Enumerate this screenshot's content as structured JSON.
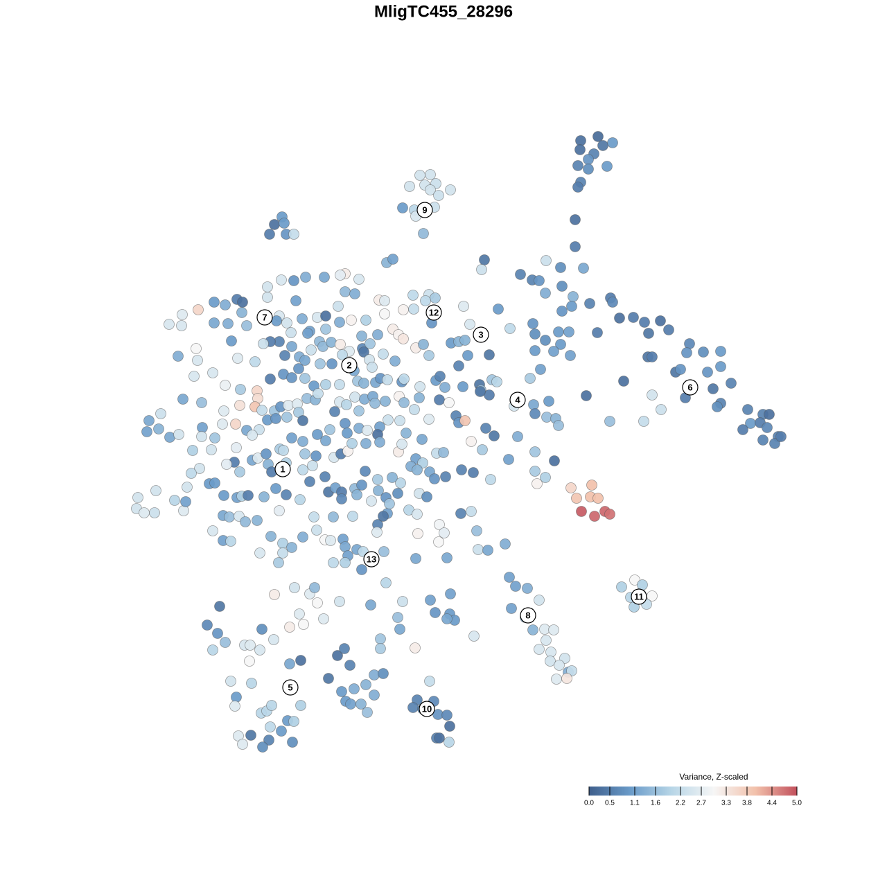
{
  "chart_data": {
    "type": "scatter",
    "title": "MligTC455_28296",
    "xlim": [
      0,
      1280
    ],
    "ylim": [
      1280,
      0
    ],
    "x": [
      863,
      838,
      870,
      884,
      837,
      857,
      849,
      834,
      849,
      876,
      838,
      834,
      606,
      621,
      591,
      613,
      629,
      650,
      621,
      633,
      581,
      627,
      598,
      600,
      611,
      407,
      396,
      410,
      389,
      413,
      424,
      830,
      830,
      699,
      695,
      751,
      788,
      809,
      842,
      768,
      778,
      811,
      787,
      827,
      851,
      881,
      884,
      811,
      825,
      769,
      772,
      806,
      821,
      787,
      809,
      772,
      799,
      823,
      862,
      894,
      914,
      930,
      936,
      953,
      965,
      935,
      941,
      995,
      991,
      1015,
      1040,
      1040,
      975,
      982,
      1021,
      1029,
      1055,
      989,
      1040,
      1035,
      1079,
      1083,
      1072,
      1101,
      1110,
      1097,
      1107,
      1123,
      1101,
      1118,
      1127,
      900,
      846,
      941,
      954,
      929,
      880,
      824,
      854,
      832,
      852,
      863,
      839,
      873,
      880,
      858,
      916,
      897,
      927,
      910,
      941,
      933,
      915,
      925,
      735,
      744,
      761,
      778,
      738,
      758,
      769,
      786,
      799,
      788,
      778,
      795,
      815,
      794,
      807,
      820,
      825,
      818,
      803,
      620,
      602,
      626,
      596,
      610,
      632,
      645,
      649,
      630,
      634,
      648,
      487,
      497,
      474,
      505,
      540,
      553,
      493,
      511,
      528,
      540,
      499,
      506,
      521,
      530,
      317,
      299,
      314,
      325,
      307,
      353,
      361,
      375,
      378,
      395,
      360,
      333,
      363,
      341,
      339,
      377,
      385,
      392,
      434,
      415,
      424,
      406,
      390,
      344,
      362,
      350,
      388,
      379,
      422,
      418,
      434,
      418,
      432,
      438,
      447,
      458,
      467,
      490,
      396,
      425,
      454,
      535,
      557,
      581,
      574,
      577,
      549,
      549,
      599,
      621,
      628,
      650,
      649,
      656,
      645,
      684,
      498,
      491,
      518,
      468,
      441,
      424,
      406,
      386,
      386,
      427,
      498,
      512,
      558,
      567,
      547,
      555,
      596,
      619,
      628,
      614,
      582,
      597,
      555,
      488,
      669,
      719,
      623,
      623,
      678,
      736,
      286,
      309,
      325,
      342,
      350,
      263,
      349,
      244,
      262,
      309,
      329,
      356,
      403,
      414,
      399,
      436,
      458,
      470,
      490,
      507,
      528,
      470,
      447,
      420,
      403,
      390,
      380,
      334,
      283,
      257,
      285,
      343,
      368,
      421,
      444,
      449,
      461,
      466,
      478,
      491,
      504,
      523,
      525,
      545,
      522,
      534,
      567,
      575,
      582,
      600,
      611,
      619,
      651,
      662,
      671,
      706,
      675,
      662,
      411,
      432,
      440,
      462,
      479,
      494,
      533,
      553,
      570,
      537,
      280,
      307,
      325,
      347,
      371,
      372,
      368,
      346,
      390,
      409,
      421,
      431,
      440,
      453,
      470,
      490,
      511,
      516,
      525,
      542,
      549,
      559,
      580,
      583,
      606,
      629,
      635,
      642,
      668,
      692,
      694,
      710,
      717,
      706,
      693,
      765,
      780,
      264,
      291,
      323,
      340,
      321,
      292,
      291,
      310,
      215,
      232,
      229,
      212,
      245,
      258,
      278,
      305,
      341,
      356,
      374,
      386,
      378,
      396,
      405,
      416,
      429,
      431,
      414,
      398,
      437,
      443,
      455,
      459,
      483,
      490,
      500,
      512,
      526,
      518,
      538,
      541,
      556,
      576,
      583,
      598,
      605,
      634,
      648,
      658,
      662,
      671,
      742,
      770,
      792,
      772,
      789,
      802,
      806,
      747,
      701,
      713,
      364,
      421,
      437,
      458,
      470,
      476,
      498,
      501,
      518,
      530,
      548,
      545,
      560,
      577,
      586,
      609,
      619,
      680,
      696,
      734,
      772,
      800,
      338,
      327,
      346,
      364,
      372,
      384,
      387,
      404,
      409,
      413,
      440,
      456,
      451,
      482,
      492,
      502,
      508,
      528,
      548,
      575,
      580,
      600,
      610,
      630,
      640,
      593,
      602,
      643,
      620,
      627,
      666,
      683,
      708,
      772,
      787,
      775,
      288,
      276,
      302,
      310,
      270,
      252,
      225,
      199,
      197,
      208,
      223,
      265,
      268,
      323,
      342,
      349,
      358,
      381,
      392,
      398,
      413,
      433,
      437,
      447,
      469,
      474,
      484,
      493,
      493,
      512,
      522,
      515,
      527,
      545,
      546,
      557,
      574,
      578,
      566,
      536,
      559,
      562,
      590,
      602,
      605,
      616,
      634,
      665,
      680,
      322,
      331,
      345,
      354,
      371,
      403,
      453,
      481,
      509,
      545,
      553,
      544,
      603,
      641,
      688,
      633,
      307,
      322,
      333,
      391,
      408,
      421,
      437,
      457,
      469,
      477,
      495,
      498,
      502,
      515,
      524,
      481,
      498,
      522,
      554,
      600,
      645,
      690,
      704,
      729,
      375,
      402,
      408
    ],
    "y": [
      197,
      203,
      210,
      206,
      216,
      222,
      230,
      239,
      244,
      240,
      263,
      270,
      253,
      252,
      269,
      267,
      265,
      274,
      274,
      282,
      300,
      299,
      303,
      312,
      337,
      313,
      324,
      322,
      338,
      338,
      338,
      317,
      356,
      375,
      389,
      396,
      376,
      386,
      387,
      404,
      405,
      413,
      423,
      428,
      438,
      430,
      436,
      449,
      442,
      467,
      482,
      479,
      479,
      491,
      497,
      506,
      507,
      513,
      480,
      459,
      458,
      465,
      481,
      463,
      476,
      515,
      515,
      496,
      509,
      508,
      507,
      529,
      537,
      533,
      537,
      561,
      553,
      574,
      582,
      587,
      591,
      611,
      620,
      598,
      598,
      610,
      617,
      630,
      635,
      640,
      630,
      550,
      571,
      570,
      591,
      608,
      608,
      704,
      700,
      719,
      717,
      719,
      738,
      738,
      742,
      745,
      837,
      847,
      844,
      862,
      860,
      872,
      876,
      858,
      833,
      846,
      849,
      866,
      878,
      891,
      909,
      908,
      909,
      924,
      937,
      941,
      950,
      954,
      960,
      970,
      968,
      979,
      980,
      983,
      1010,
      1012,
      1021,
      1023,
      1031,
      1032,
      1048,
      1065,
      1065,
      1071,
      946,
      936,
      979,
      960,
      974,
      972,
      998,
      994,
      988,
      1003,
      1012,
      1016,
      1016,
      1028,
      875,
      902,
      914,
      927,
      938,
      931,
      931,
      938,
      908,
      923,
      954,
      983,
      986,
      1006,
      1019,
      1029,
      1026,
      1018,
      1018,
      1040,
      1041,
      1055,
      1049,
      1062,
      1061,
      1074,
      1068,
      1078,
      1071,
      958,
      953,
      905,
      886,
      901,
      857,
      870,
      893,
      868,
      858,
      848,
      848,
      873,
      841,
      868,
      891,
      908,
      922,
      936,
      935,
      866,
      884,
      857,
      886,
      895,
      893,
      918,
      395,
      397,
      403,
      400,
      400,
      405,
      404,
      414,
      429,
      434,
      421,
      424,
      379,
      374,
      433,
      434,
      426,
      425,
      430,
      434,
      447,
      446,
      453,
      442,
      442,
      446,
      450,
      466,
      468,
      474,
      447,
      436,
      440,
      432,
      436,
      454,
      451,
      468,
      470,
      466,
      467,
      470,
      456,
      466,
      463,
      460,
      458,
      456,
      465,
      462,
      462,
      475,
      478,
      480,
      493,
      493,
      496,
      492,
      503,
      514,
      520,
      517,
      522,
      500,
      481,
      505,
      493,
      500,
      494,
      497,
      507,
      503,
      508,
      483,
      485,
      496,
      475,
      483,
      489,
      502,
      497,
      513,
      495,
      493,
      491,
      512,
      513,
      528,
      513,
      515,
      520,
      525,
      525,
      512,
      519,
      511,
      521,
      530,
      543,
      538,
      556,
      562,
      564,
      575,
      587,
      585,
      547,
      540,
      545,
      532,
      546,
      557,
      555,
      555,
      535,
      550,
      553,
      552,
      546,
      548,
      551,
      547,
      558,
      549,
      543,
      559,
      558,
      555,
      563,
      548,
      551,
      570,
      565,
      546,
      533,
      576,
      581,
      593,
      612,
      612,
      617,
      630,
      632,
      607,
      597,
      619,
      623,
      631,
      627,
      650,
      649,
      646,
      621,
      620,
      606,
      592,
      593,
      587,
      585,
      583,
      595,
      602,
      604,
      607,
      575,
      577,
      568,
      594,
      580,
      584,
      573,
      576,
      593,
      572,
      582,
      579,
      572,
      581,
      591,
      574,
      577,
      581,
      600,
      610,
      607,
      586,
      584,
      579,
      597,
      602,
      604,
      614,
      630,
      618,
      629,
      628,
      632,
      637,
      627,
      636,
      620,
      611,
      625,
      618,
      621,
      616,
      627,
      606,
      607,
      625,
      634,
      605,
      637,
      649,
      663,
      652,
      665,
      667,
      670,
      681,
      664,
      661,
      655,
      670,
      648,
      650,
      668,
      655,
      658,
      672,
      660,
      655,
      651,
      640,
      640,
      638,
      652,
      641,
      662,
      668,
      654,
      653,
      673,
      678,
      688,
      681,
      691,
      678,
      682,
      692,
      680,
      689,
      698,
      676,
      683,
      698,
      697,
      703,
      722,
      708,
      718,
      734,
      740,
      740,
      737,
      724,
      715,
      718,
      716,
      715,
      717,
      681,
      705,
      714,
      721,
      678,
      695,
      688,
      710,
      704,
      710,
      720,
      705,
      700,
      714,
      680,
      692,
      708,
      718,
      712,
      697,
      689,
      723,
      741,
      727,
      736,
      742,
      712,
      717,
      757,
      741,
      738,
      744,
      746,
      745,
      753,
      751,
      737,
      746,
      746,
      745,
      757,
      745,
      768,
      770,
      769,
      766,
      782,
      766,
      780,
      781,
      774,
      784,
      790,
      775,
      765,
      779,
      780,
      778,
      789,
      802,
      793,
      796,
      812,
      812,
      822,
      796,
      806,
      805,
      793,
      794,
      785,
      798,
      812,
      798
    ],
    "values": [
      0.2,
      0.3,
      0.4,
      1.0,
      0.3,
      0.6,
      0.9,
      0.6,
      0.8,
      1.0,
      0.6,
      0.5,
      2.4,
      2.4,
      2.4,
      2.4,
      2.3,
      2.4,
      2.4,
      2.3,
      1.0,
      2.3,
      2.0,
      2.5,
      1.5,
      1.0,
      0.3,
      1.0,
      0.5,
      0.9,
      2.2,
      0.3,
      0.5,
      0.4,
      2.3,
      0.6,
      2.3,
      0.8,
      1.2,
      0.6,
      0.9,
      0.8,
      1.3,
      1.4,
      0.6,
      0.5,
      0.7,
      0.9,
      1.0,
      0.9,
      0.8,
      1.0,
      1.1,
      0.8,
      1.0,
      1.0,
      1.1,
      1.1,
      0.5,
      0.3,
      0.5,
      0.5,
      0.4,
      0.3,
      0.5,
      0.4,
      0.5,
      0.7,
      0.9,
      0.8,
      1.0,
      1.0,
      0.4,
      0.9,
      0.9,
      0.4,
      0.6,
      0.5,
      0.6,
      0.8,
      0.6,
      1.0,
      0.5,
      0.6,
      0.3,
      0.5,
      0.7,
      0.6,
      0.6,
      0.6,
      0.5,
      0.3,
      0.3,
      2.4,
      2.3,
      2.2,
      1.6,
      3.6,
      4.0,
      3.9,
      4.0,
      4.0,
      4.9,
      4.8,
      4.7,
      4.8,
      3.0,
      1.9,
      1.9,
      2.0,
      3.0,
      2.2,
      1.9,
      2.1,
      1.1,
      1.1,
      1.3,
      2.4,
      1.1,
      1.3,
      1.4,
      2.6,
      2.6,
      2.5,
      2.5,
      2.5,
      2.4,
      2.4,
      2.5,
      1.3,
      2.2,
      3.3,
      2.6,
      2.2,
      0.6,
      0.7,
      0.6,
      0.8,
      0.9,
      0.7,
      0.3,
      0.6,
      0.3,
      2.0,
      0.3,
      0.6,
      0.4,
      0.6,
      1.3,
      0.8,
      1.0,
      1.3,
      1.4,
      1.3,
      1.0,
      1.1,
      1.4,
      1.6,
      0.4,
      0.7,
      0.9,
      1.6,
      2.0,
      2.5,
      2.6,
      2.5,
      0.8,
      2.5,
      3.0,
      2.4,
      2.0,
      1.0,
      2.6,
      2.0,
      2.0,
      2.0,
      1.9,
      1.0,
      1.9,
      1.0,
      2.1,
      2.6,
      0.4,
      2.6,
      0.6,
      0.8,
      0.8,
      1.2,
      0.3,
      3.2,
      2.6,
      3.0,
      2.6,
      3.0,
      2.6,
      2.4,
      3.2,
      2.4,
      1.5,
      1.2,
      2.0,
      2.3,
      1.6,
      1.2,
      1.7,
      1.8,
      3.2,
      1.1,
      0.9,
      1.1,
      1.0,
      1.0,
      1.2,
      2.5,
      3.2,
      2.7,
      2.5,
      1.2,
      1.3,
      0.9,
      2.5,
      2.4,
      2.4,
      1.1,
      1.5,
      1.3,
      1.4,
      1.1,
      3.2,
      2.6,
      2.1,
      2.3,
      1.8,
      2.1,
      3.1,
      2.2,
      3.0,
      2.3,
      2.6,
      1.0,
      0.9,
      0.9,
      2.5,
      2.1,
      3.6,
      1.0,
      1.3,
      0.5,
      0.3,
      2.6,
      1.4,
      2.5,
      2.5,
      1.2,
      1.3,
      1.6,
      2.5,
      2.4,
      1.0,
      1.3,
      2.5,
      0.3,
      1.3,
      3.1,
      1.9,
      1.7,
      1.1,
      2.3,
      0.6,
      0.5,
      2.3,
      1.0,
      3.0,
      1.3,
      2.5,
      2.6,
      2.1,
      1.2,
      1.1,
      2.3,
      1.5,
      1.5,
      1.4,
      3.2,
      2.6,
      0.7,
      0.4,
      1.3,
      1.4,
      1.7,
      3.2,
      3.1,
      3.3,
      3.2,
      1.4,
      1.8,
      1.0,
      1.4,
      1.4,
      0.4,
      1.0,
      0.6,
      0.6,
      1.3,
      1.2,
      1.7,
      0.9,
      2.1,
      2.4,
      2.2,
      1.3,
      2.3,
      2.5,
      2.5,
      2.8,
      1.8,
      3.6,
      3.5,
      3.9,
      3.4,
      0.5,
      0.9,
      0.9,
      0.9,
      1.7,
      1.0,
      1.9,
      2.2,
      1.2,
      1.7,
      1.4,
      1.2,
      0.9,
      2.2,
      0.9,
      2.1,
      2.4,
      1.0,
      0.6,
      1.3,
      1.0,
      0.4,
      1.6,
      1.7,
      2.0,
      0.5,
      0.4,
      1.8,
      1.1,
      1.2,
      1.6,
      2.6,
      3.6,
      2.6,
      1.1,
      2.4,
      1.7,
      1.2,
      2.3,
      1.4,
      1.1,
      1.2,
      2.4,
      1.9,
      2.4,
      2.7,
      1.2,
      2.3,
      1.0,
      2.2,
      1.7,
      0.9,
      2.6,
      2.6,
      1.8,
      1.7,
      0.9,
      0.4,
      1.6,
      1.4,
      2.2,
      0.6,
      2.5,
      2.0,
      2.4,
      1.3,
      1.7,
      1.2,
      1.5,
      1.4,
      3.1,
      1.5,
      2.2,
      1.4,
      0.5,
      3.0,
      0.6,
      0.9,
      3.9,
      2.4,
      1.2,
      1.0,
      0.7,
      1.6,
      1.4,
      1.6,
      1.3,
      0.6,
      0.4,
      2.5,
      1.1,
      1.3,
      1.0,
      1.2,
      1.7,
      0.9,
      1.0,
      1.3,
      2.6,
      1.1,
      0.3,
      2.3,
      2.3,
      1.4,
      1.2,
      2.6,
      3.1,
      1.8,
      1.1,
      1.7,
      0.3,
      0.5,
      2.7,
      1.8,
      1.2,
      2.6,
      0.9,
      1.4,
      1.8,
      2.1,
      1.9,
      1.7,
      0.9,
      2.3,
      2.5,
      0.5,
      3.1,
      1.9,
      1.3,
      1.3,
      3.2,
      2.5,
      1.1,
      1.9,
      2.2,
      1.5,
      1.3,
      1.4,
      0.6,
      1.2,
      0.9,
      0.6,
      0.5,
      2.1,
      1.8,
      1.9,
      3.1,
      2.4,
      2.1,
      1.0,
      1.0,
      2.4,
      2.0,
      2.4,
      2.4,
      2.4,
      2.6,
      2.3,
      2.6,
      1.1,
      1.0,
      1.1,
      1.9,
      0.5,
      1.4,
      0.5,
      1.0,
      0.6,
      2.0,
      2.1,
      0.6,
      0.6,
      0.4,
      1.1,
      0.5,
      0.7,
      1.5,
      0.9,
      1.4,
      0.7,
      1.8,
      1.4,
      0.9,
      0.8,
      2.0,
      1.4,
      2.5,
      1.1,
      1.7,
      2.0,
      2.5,
      2.4,
      0.8,
      2.9,
      0.6,
      2.2,
      1.2,
      1.6,
      2.5,
      1.5,
      1.4,
      2.7,
      2.2,
      1.5,
      2.1,
      0.6,
      0.4,
      2.6,
      3.1,
      2.7,
      1.6,
      3.0,
      2.5,
      1.1,
      2.0,
      1.4,
      1.9,
      1.4,
      1.3,
      2.3,
      3.0,
      2.6,
      1.1,
      1.2,
      1.1,
      1.2,
      2.1,
      2.1,
      1.9,
      0.9,
      1.6,
      1.2,
      1.2,
      2.3,
      1.2,
      1.3,
      2.5,
      1.8,
      2.2
    ],
    "cluster_labels": {
      "labels": [
        "1",
        "2",
        "3",
        "4",
        "5",
        "6",
        "7",
        "8",
        "9",
        "10",
        "11",
        "12",
        "13"
      ],
      "x": [
        408,
        504,
        694,
        747,
        419,
        996,
        382,
        762,
        613,
        616,
        922,
        626,
        536
      ],
      "y": [
        677,
        527,
        483,
        577,
        992,
        559,
        458,
        888,
        303,
        1023,
        861,
        451,
        807
      ]
    },
    "colorbar": {
      "title": "Variance, Z-scaled",
      "lim": [
        0,
        5
      ],
      "ticks": [
        {
          "value": 0,
          "label": "0.0"
        },
        0.5,
        1.1,
        1.6,
        2.2,
        2.7,
        3.3,
        3.8,
        4.4,
        {
          "value": 5,
          "label": "5.0"
        }
      ],
      "colorscale": [
        "#3f5f8c",
        "#6a9bc9",
        "#b8d6e7",
        "#f6f6f6",
        "#f2c1ab",
        "#c2505c"
      ]
    }
  }
}
